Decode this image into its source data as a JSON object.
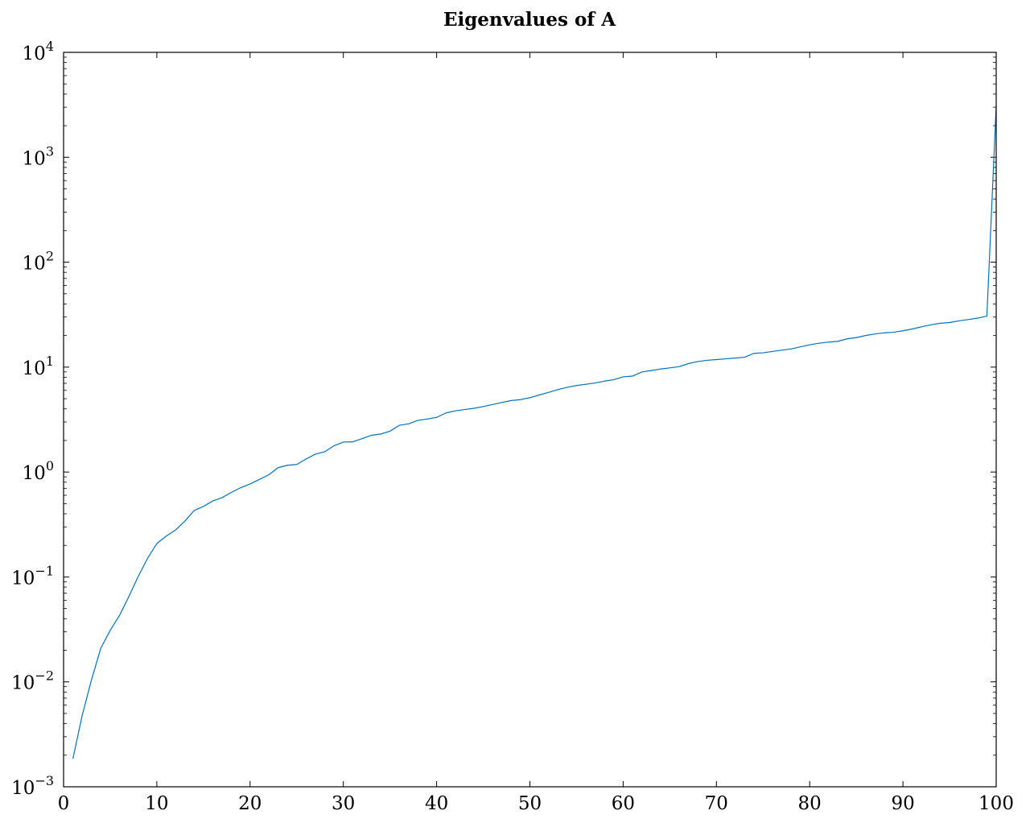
{
  "chart_data": {
    "type": "line",
    "title": "Eigenvalues of A",
    "xlabel": "",
    "ylabel": "",
    "xlim": [
      0,
      100
    ],
    "ylim": [
      0.001,
      10000
    ],
    "yscale": "log",
    "grid": false,
    "x_ticks": [
      0,
      10,
      20,
      30,
      40,
      50,
      60,
      70,
      80,
      90,
      100
    ],
    "y_ticks": [
      {
        "value": 0.001,
        "base": "10",
        "exp": "−3"
      },
      {
        "value": 0.01,
        "base": "10",
        "exp": "−2"
      },
      {
        "value": 0.1,
        "base": "10",
        "exp": "−1"
      },
      {
        "value": 1,
        "base": "10",
        "exp": "0"
      },
      {
        "value": 10,
        "base": "10",
        "exp": "1"
      },
      {
        "value": 100,
        "base": "10",
        "exp": "2"
      },
      {
        "value": 1000,
        "base": "10",
        "exp": "3"
      },
      {
        "value": 10000,
        "base": "10",
        "exp": "4"
      }
    ],
    "series": [
      {
        "color": "#0072bd",
        "x": [
          1,
          2,
          3,
          4,
          5,
          6,
          7,
          8,
          9,
          10,
          11,
          12,
          13,
          14,
          15,
          16,
          17,
          18,
          19,
          20,
          21,
          22,
          23,
          24,
          25,
          26,
          27,
          28,
          29,
          30,
          31,
          32,
          33,
          34,
          35,
          36,
          37,
          38,
          39,
          40,
          41,
          42,
          43,
          44,
          45,
          46,
          47,
          48,
          49,
          50,
          51,
          52,
          53,
          54,
          55,
          56,
          57,
          58,
          59,
          60,
          61,
          62,
          63,
          64,
          65,
          66,
          67,
          68,
          69,
          70,
          71,
          72,
          73,
          74,
          75,
          76,
          77,
          78,
          79,
          80,
          81,
          82,
          83,
          84,
          85,
          86,
          87,
          88,
          89,
          90,
          91,
          92,
          93,
          94,
          95,
          96,
          97,
          98,
          99,
          100
        ],
        "y": [
          0.00185,
          0.0048,
          0.0105,
          0.021,
          0.031,
          0.043,
          0.065,
          0.101,
          0.15,
          0.208,
          0.245,
          0.28,
          0.34,
          0.43,
          0.47,
          0.53,
          0.57,
          0.64,
          0.71,
          0.77,
          0.85,
          0.94,
          1.1,
          1.16,
          1.18,
          1.33,
          1.48,
          1.56,
          1.78,
          1.93,
          1.94,
          2.08,
          2.24,
          2.3,
          2.45,
          2.79,
          2.88,
          3.11,
          3.2,
          3.32,
          3.66,
          3.83,
          3.94,
          4.05,
          4.21,
          4.4,
          4.6,
          4.8,
          4.9,
          5.11,
          5.42,
          5.74,
          6.1,
          6.42,
          6.67,
          6.86,
          7.06,
          7.35,
          7.59,
          8.08,
          8.21,
          8.98,
          9.27,
          9.58,
          9.83,
          10.1,
          10.8,
          11.3,
          11.6,
          11.8,
          12.0,
          12.2,
          12.4,
          13.5,
          13.7,
          14.1,
          14.5,
          14.9,
          15.6,
          16.3,
          16.9,
          17.3,
          17.6,
          18.6,
          19.1,
          20.0,
          20.7,
          21.2,
          21.5,
          22.2,
          23.1,
          24.2,
          25.3,
          26.2,
          26.6,
          27.6,
          28.4,
          29.3,
          30.6,
          3100
        ]
      }
    ]
  }
}
